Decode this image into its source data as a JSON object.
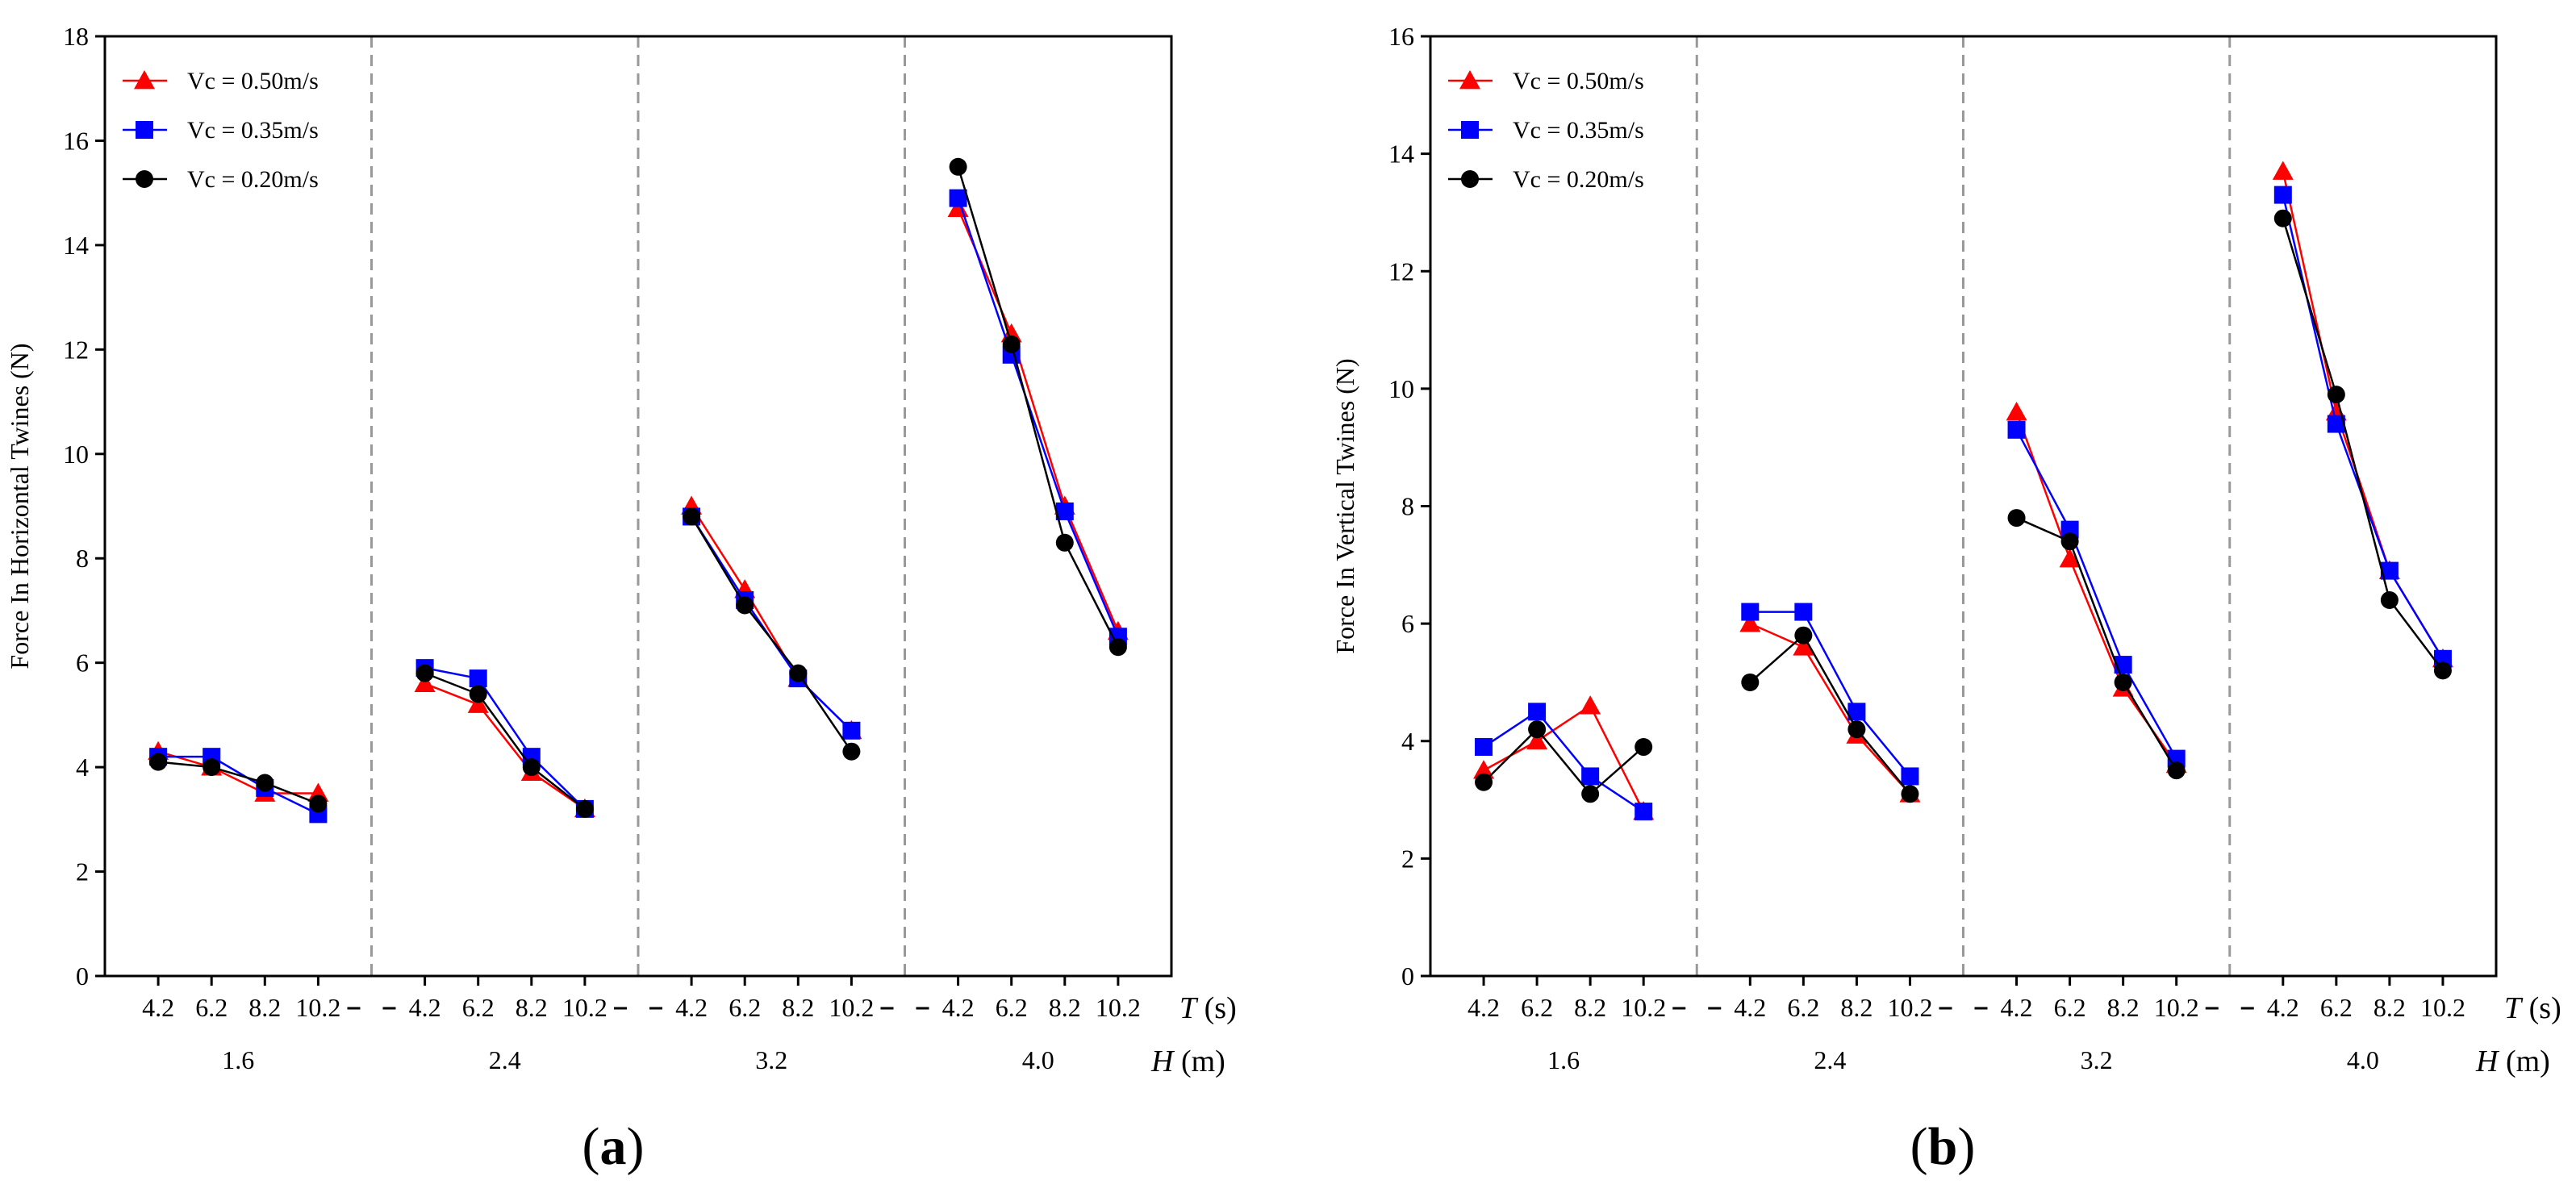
{
  "colors": {
    "series_050": "#ff0000",
    "series_035": "#0000ff",
    "series_020": "#000000",
    "separator": "#999999"
  },
  "chart_data": [
    {
      "type": "line",
      "panel_label": "a",
      "ylabel": "Force In Horizontal Twines (N)",
      "ylim": [
        0,
        18
      ],
      "yticks": [
        0,
        2,
        4,
        6,
        8,
        10,
        12,
        14,
        16,
        18
      ],
      "x_inner_label_var": "T",
      "x_inner_label_unit": "(s)",
      "x_outer_label_var": "H",
      "x_outer_label_unit": "(m)",
      "groups": [
        {
          "label": "1.6",
          "categories": [
            "4.2",
            "6.2",
            "8.2",
            "10.2"
          ]
        },
        {
          "label": "2.4",
          "categories": [
            "4.2",
            "6.2",
            "8.2",
            "10.2"
          ]
        },
        {
          "label": "3.2",
          "categories": [
            "4.2",
            "6.2",
            "8.2",
            "10.2"
          ]
        },
        {
          "label": "4.0",
          "categories": [
            "4.2",
            "6.2",
            "8.2",
            "10.2"
          ]
        }
      ],
      "legend_position": "top-left",
      "series": [
        {
          "name": "Vc = 0.50m/s",
          "marker": "triangle",
          "color": "#ff0000",
          "values": [
            [
              4.3,
              4.0,
              3.5,
              3.5
            ],
            [
              5.6,
              5.2,
              3.9,
              3.2
            ],
            [
              9.0,
              7.4,
              5.7,
              4.7
            ],
            [
              14.7,
              12.3,
              9.0,
              6.6
            ]
          ]
        },
        {
          "name": "Vc = 0.35m/s",
          "marker": "square",
          "color": "#0000ff",
          "values": [
            [
              4.2,
              4.2,
              3.6,
              3.1
            ],
            [
              5.9,
              5.7,
              4.2,
              3.2
            ],
            [
              8.8,
              7.2,
              5.7,
              4.7
            ],
            [
              14.9,
              11.9,
              8.9,
              6.5
            ]
          ]
        },
        {
          "name": "Vc = 0.20m/s",
          "marker": "circle",
          "color": "#000000",
          "values": [
            [
              4.1,
              4.0,
              3.7,
              3.3
            ],
            [
              5.8,
              5.4,
              4.0,
              3.2
            ],
            [
              8.8,
              7.1,
              5.8,
              4.3
            ],
            [
              15.5,
              12.1,
              8.3,
              6.3
            ]
          ]
        }
      ]
    },
    {
      "type": "line",
      "panel_label": "b",
      "ylabel": "Force In Vertical Twines (N)",
      "ylim": [
        0,
        16
      ],
      "yticks": [
        0,
        2,
        4,
        6,
        8,
        10,
        12,
        14,
        16
      ],
      "x_inner_label_var": "T",
      "x_inner_label_unit": "(s)",
      "x_outer_label_var": "H",
      "x_outer_label_unit": "(m)",
      "groups": [
        {
          "label": "1.6",
          "categories": [
            "4.2",
            "6.2",
            "8.2",
            "10.2"
          ]
        },
        {
          "label": "2.4",
          "categories": [
            "4.2",
            "6.2",
            "8.2",
            "10.2"
          ]
        },
        {
          "label": "3.2",
          "categories": [
            "4.2",
            "6.2",
            "8.2",
            "10.2"
          ]
        },
        {
          "label": "4.0",
          "categories": [
            "4.2",
            "6.2",
            "8.2",
            "10.2"
          ]
        }
      ],
      "legend_position": "top-left",
      "series": [
        {
          "name": "Vc = 0.50m/s",
          "marker": "triangle",
          "color": "#ff0000",
          "values": [
            [
              3.5,
              4.0,
              4.6,
              2.8
            ],
            [
              6.0,
              5.6,
              4.1,
              3.1
            ],
            [
              9.6,
              7.1,
              4.9,
              3.6
            ],
            [
              13.7,
              9.6,
              6.9,
              5.4
            ]
          ]
        },
        {
          "name": "Vc = 0.35m/s",
          "marker": "square",
          "color": "#0000ff",
          "values": [
            [
              3.9,
              4.5,
              3.4,
              2.8
            ],
            [
              6.2,
              6.2,
              4.5,
              3.4
            ],
            [
              9.3,
              7.6,
              5.3,
              3.7
            ],
            [
              13.3,
              9.4,
              6.9,
              5.4
            ]
          ]
        },
        {
          "name": "Vc = 0.20m/s",
          "marker": "circle",
          "color": "#000000",
          "values": [
            [
              3.3,
              4.2,
              3.1,
              3.9
            ],
            [
              5.0,
              5.8,
              4.2,
              3.1
            ],
            [
              7.8,
              7.4,
              5.0,
              3.5
            ],
            [
              12.9,
              9.9,
              6.4,
              5.2
            ]
          ]
        }
      ]
    }
  ]
}
